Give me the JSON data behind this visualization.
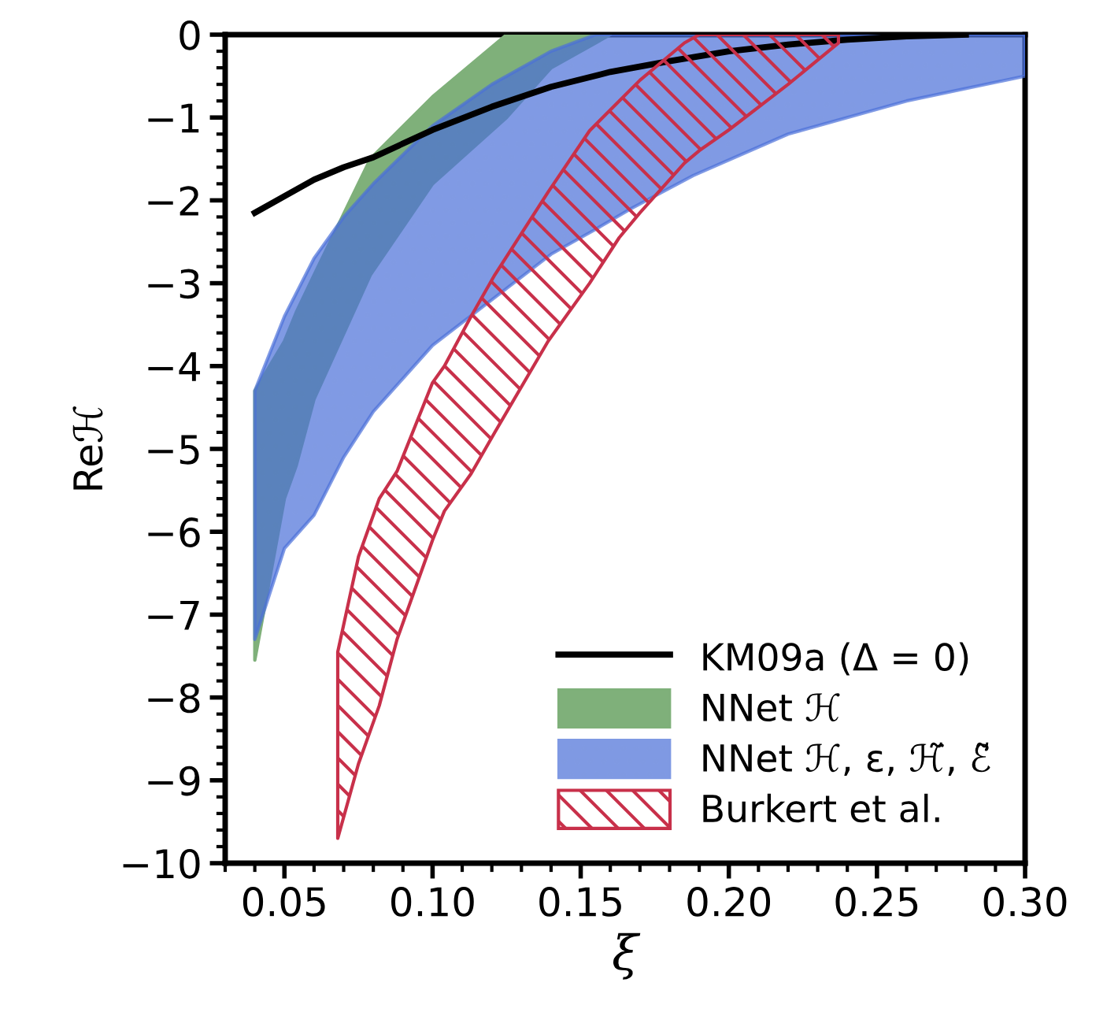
{
  "chart_data": {
    "type": "area",
    "xlabel": "ξ",
    "ylabel": "Reℋ",
    "xlim": [
      0.03,
      0.3
    ],
    "xticks": [
      {
        "value": 0.05,
        "label": "0.05"
      },
      {
        "value": 0.1,
        "label": "0.10"
      },
      {
        "value": 0.15,
        "label": "0.15"
      },
      {
        "value": 0.2,
        "label": "0.20"
      },
      {
        "value": 0.25,
        "label": "0.25"
      },
      {
        "value": 0.3,
        "label": "0.30"
      }
    ],
    "ylim": [
      -10,
      0
    ],
    "yticks": [
      {
        "value": -10,
        "label": "−10"
      },
      {
        "value": -9,
        "label": "−9"
      },
      {
        "value": -8,
        "label": "−8"
      },
      {
        "value": -7,
        "label": "−7"
      },
      {
        "value": -6,
        "label": "−6"
      },
      {
        "value": -5,
        "label": "−5"
      },
      {
        "value": -4,
        "label": "−4"
      },
      {
        "value": -3,
        "label": "−3"
      },
      {
        "value": -2,
        "label": "−2"
      },
      {
        "value": -1,
        "label": "−1"
      },
      0
    ],
    "legend": "bottom right",
    "grid": false,
    "series": [
      {
        "name": "KM09a (Δ = 0)",
        "type": "line",
        "color": "#000000",
        "x": [
          0.04,
          0.05,
          0.06,
          0.07,
          0.08,
          0.1,
          0.12,
          0.14,
          0.16,
          0.18,
          0.2,
          0.22,
          0.24,
          0.26,
          0.28
        ],
        "values": [
          -2.15,
          -1.95,
          -1.75,
          -1.6,
          -1.48,
          -1.15,
          -0.87,
          -0.63,
          -0.45,
          -0.32,
          -0.2,
          -0.12,
          -0.06,
          -0.02,
          0
        ]
      },
      {
        "name": "NNet ℋ",
        "color": "#7fb07a",
        "x": [
          0.04,
          0.05,
          0.054,
          0.06,
          0.079,
          0.1,
          0.125,
          0.14,
          0.16
        ],
        "values": [
          null,
          null,
          null,
          null,
          null,
          null,
          null,
          null,
          null
        ],
        "upper": [
          -4.3,
          -3.7,
          -3.35,
          -2.9,
          -1.5,
          -0.75,
          0,
          0,
          0
        ],
        "lower": [
          -7.55,
          -5.6,
          -5.2,
          -4.4,
          -2.9,
          -1.8,
          -1.0,
          -0.4,
          0
        ]
      },
      {
        "name": "NNet ℋ, ε, ℋ̃, ℰ̃",
        "color": "#4a6fd8",
        "x": [
          0.04,
          0.05,
          0.06,
          0.07,
          0.08,
          0.1,
          0.12,
          0.14,
          0.155,
          0.167,
          0.188,
          0.22,
          0.26,
          0.3
        ],
        "values": [
          null,
          null,
          null,
          null,
          null,
          null,
          null,
          null,
          null,
          null,
          null,
          null,
          null,
          null
        ],
        "upper": [
          -4.3,
          -3.4,
          -2.7,
          -2.2,
          -1.8,
          -1.1,
          -0.6,
          -0.2,
          0,
          0,
          0,
          0,
          0,
          0
        ],
        "lower": [
          -7.3,
          -6.2,
          -5.8,
          -5.1,
          -4.55,
          -3.75,
          -3.2,
          -2.65,
          -2.35,
          -2.1,
          -1.7,
          -1.2,
          -0.8,
          -0.5
        ]
      },
      {
        "name": "Burkert et al.",
        "color": "#c8304a",
        "x": [
          0.068,
          0.075,
          0.082,
          0.088,
          0.1,
          0.104,
          0.113,
          0.121,
          0.139,
          0.153,
          0.163,
          0.17,
          0.185,
          0.19,
          0.2,
          0.22,
          0.237
        ],
        "values": [
          null,
          null,
          null,
          null,
          null,
          null,
          null,
          null,
          null,
          null,
          null,
          null,
          null,
          null,
          null,
          null,
          null
        ],
        "upper": [
          -7.45,
          -6.3,
          -5.6,
          -5.27,
          -4.2,
          -4.0,
          -3.4,
          -2.9,
          -1.9,
          -1.16,
          -0.8,
          -0.55,
          -0.1,
          0,
          0,
          0,
          0
        ],
        "lower": [
          -9.7,
          -8.8,
          -8.1,
          -7.3,
          -6.1,
          -5.75,
          -5.3,
          -4.8,
          -3.7,
          -3.0,
          -2.45,
          -2.15,
          -1.55,
          -1.4,
          -1.15,
          -0.6,
          -0.1
        ]
      }
    ]
  }
}
